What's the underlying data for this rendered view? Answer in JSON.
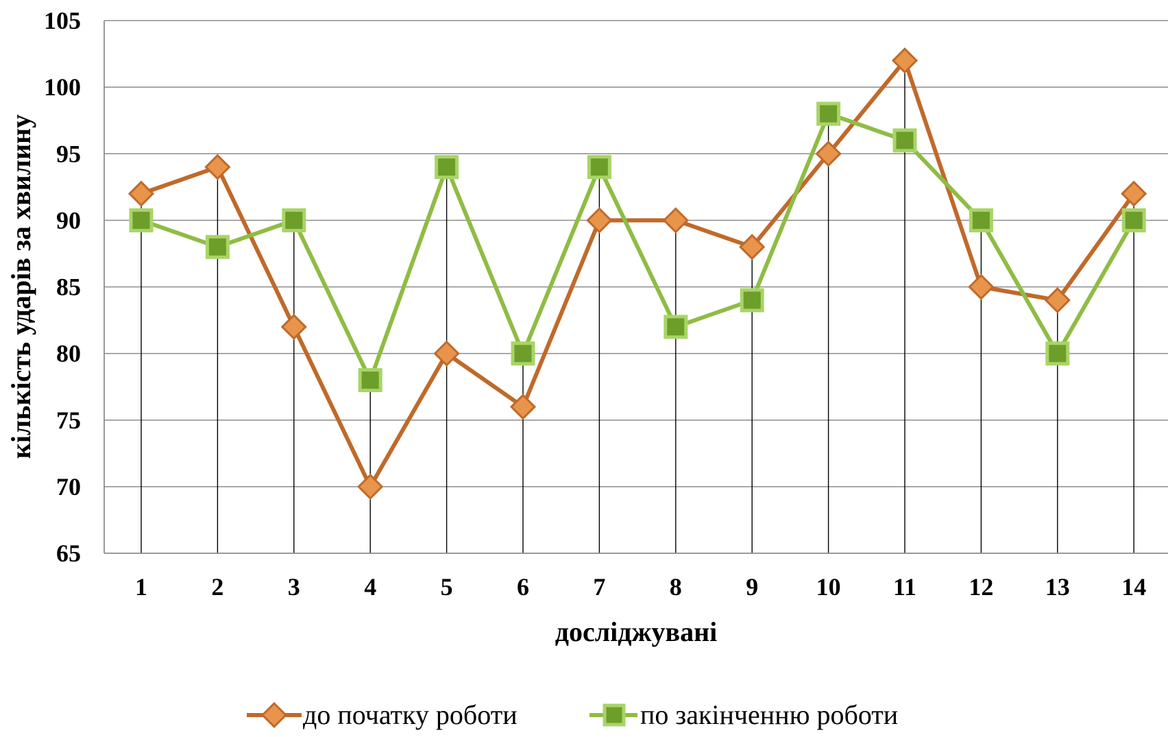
{
  "chart_data": {
    "type": "line",
    "title": "",
    "xlabel": "досліджувані",
    "ylabel": "кількість ударів за хвилину",
    "categories": [
      "1",
      "2",
      "3",
      "4",
      "5",
      "6",
      "7",
      "8",
      "9",
      "10",
      "11",
      "12",
      "13",
      "14"
    ],
    "ylim": [
      65,
      105
    ],
    "yticks": [
      65,
      70,
      75,
      80,
      85,
      90,
      95,
      100,
      105
    ],
    "grid": true,
    "drop_lines": true,
    "legend_position": "bottom",
    "series": [
      {
        "name": "до початку роботи",
        "color": "#c0692b",
        "marker": "diamond",
        "values": [
          92,
          94,
          82,
          70,
          80,
          76,
          90,
          90,
          88,
          95,
          102,
          85,
          84,
          92
        ]
      },
      {
        "name": "по закінченню роботи",
        "color": "#8fbc44",
        "marker": "square",
        "values": [
          90,
          88,
          90,
          78,
          94,
          80,
          94,
          82,
          84,
          98,
          96,
          90,
          80,
          90
        ]
      }
    ]
  }
}
